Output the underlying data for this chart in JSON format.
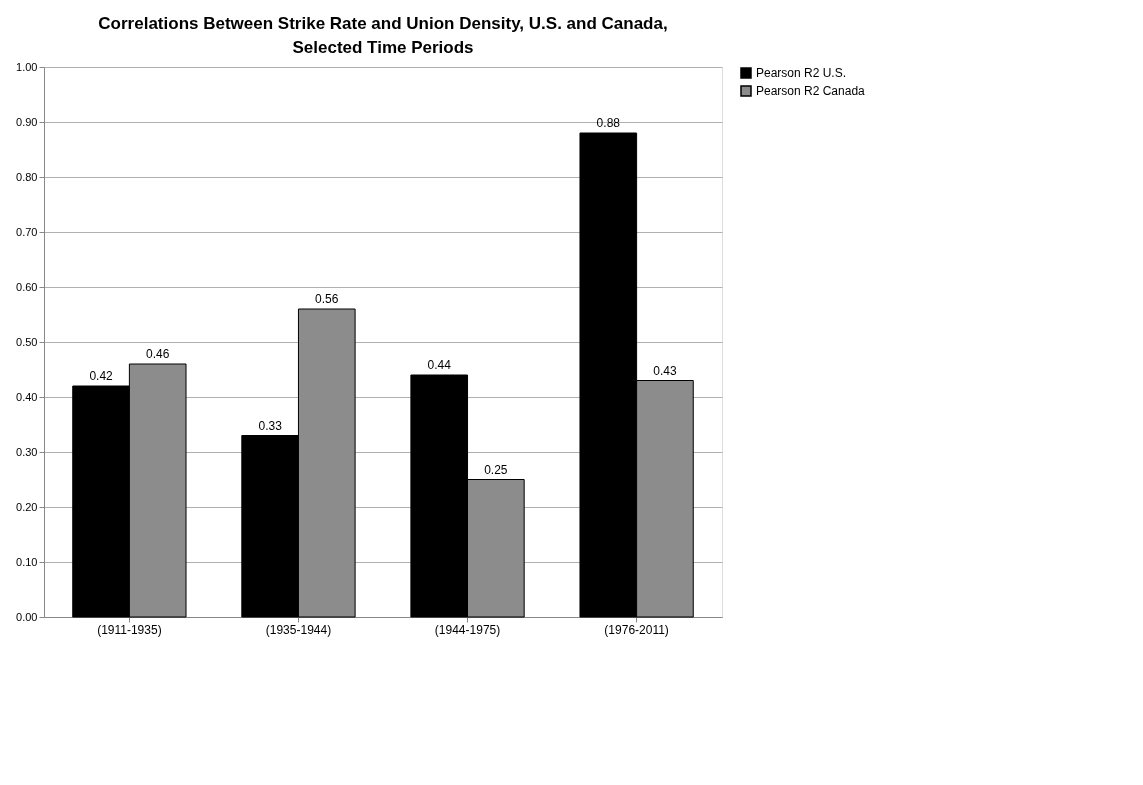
{
  "chart_data": {
    "type": "bar",
    "title": "Correlations Between Strike Rate and Union Density, U.S. and Canada, Selected Time Periods",
    "categories": [
      "(1911-1935)",
      "(1935-1944)",
      "(1944-1975)",
      "(1976-2011)"
    ],
    "series": [
      {
        "name": "Pearson R2 U.S.",
        "color": "#000000",
        "values": [
          0.42,
          0.33,
          0.44,
          0.88
        ]
      },
      {
        "name": "Pearson R2 Canada",
        "color": "#8c8c8c",
        "values": [
          0.46,
          0.56,
          0.25,
          0.43
        ]
      }
    ],
    "ylim": [
      0,
      1
    ],
    "yticks": [
      {
        "value": 0,
        "label": "0.00"
      },
      {
        "value": 0.1,
        "label": "0.10"
      },
      {
        "value": 0.2,
        "label": "0.20"
      },
      {
        "value": 0.3,
        "label": "0.30"
      },
      {
        "value": 0.4,
        "label": "0.40"
      },
      {
        "value": 0.5,
        "label": "0.50"
      },
      {
        "value": 0.6,
        "label": "0.60"
      },
      {
        "value": 0.7,
        "label": "0.70"
      },
      {
        "value": 0.8,
        "label": "0.80"
      },
      {
        "value": 0.9,
        "label": "0.90"
      },
      {
        "value": 1,
        "label": "1.00"
      }
    ],
    "grid": "y",
    "legend": "right",
    "data_labels": true
  }
}
